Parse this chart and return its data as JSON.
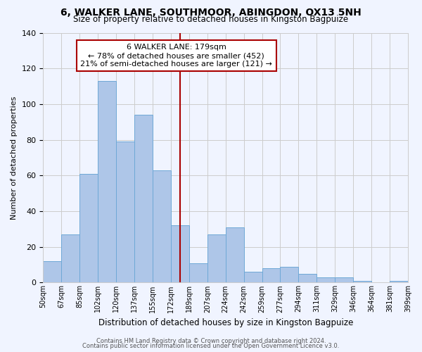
{
  "title": "6, WALKER LANE, SOUTHMOOR, ABINGDON, OX13 5NH",
  "subtitle": "Size of property relative to detached houses in Kingston Bagpuize",
  "xlabel": "Distribution of detached houses by size in Kingston Bagpuize",
  "ylabel": "Number of detached properties",
  "bin_labels": [
    "50sqm",
    "67sqm",
    "85sqm",
    "102sqm",
    "120sqm",
    "137sqm",
    "155sqm",
    "172sqm",
    "189sqm",
    "207sqm",
    "224sqm",
    "242sqm",
    "259sqm",
    "277sqm",
    "294sqm",
    "311sqm",
    "329sqm",
    "346sqm",
    "364sqm",
    "381sqm",
    "399sqm"
  ],
  "bar_values": [
    12,
    27,
    61,
    113,
    79,
    94,
    63,
    32,
    11,
    27,
    31,
    6,
    8,
    9,
    5,
    3,
    3,
    1,
    0,
    1
  ],
  "bar_color": "#aec6e8",
  "bar_edge_color": "#6fa8d6",
  "vline_x": 7.5,
  "vline_color": "#aa0000",
  "ylim": [
    0,
    140
  ],
  "yticks": [
    0,
    20,
    40,
    60,
    80,
    100,
    120,
    140
  ],
  "annotation_title": "6 WALKER LANE: 179sqm",
  "annotation_line1": "← 78% of detached houses are smaller (452)",
  "annotation_line2": "21% of semi-detached houses are larger (121) →",
  "annotation_box_color": "#ffffff",
  "annotation_box_edge_color": "#aa0000",
  "footer1": "Contains HM Land Registry data © Crown copyright and database right 2024.",
  "footer2": "Contains public sector information licensed under the Open Government Licence v3.0.",
  "background_color": "#f0f4ff"
}
